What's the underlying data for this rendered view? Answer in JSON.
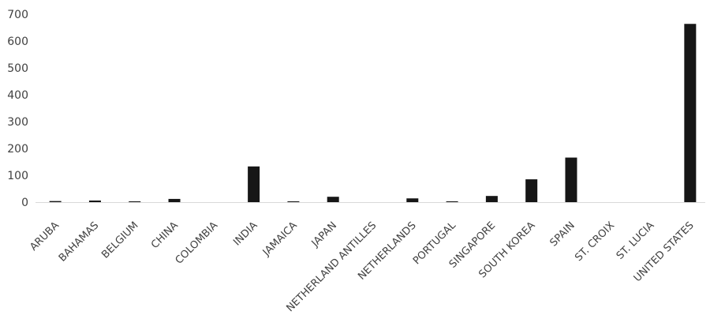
{
  "chart_data": {
    "type": "bar",
    "title": "",
    "xlabel": "",
    "ylabel": "",
    "ylim": [
      0,
      700
    ],
    "yticks": [
      0,
      100,
      200,
      300,
      400,
      500,
      600,
      700
    ],
    "grid": false,
    "legend": "none",
    "bar_color": "#161616",
    "categories": [
      "ARUBA",
      "BAHAMAS",
      "BELGIUM",
      "CHINA",
      "COLOMBIA",
      "INDIA",
      "JAMAICA",
      "JAPAN",
      "NETHERLAND ANTILLES",
      "NETHERLANDS",
      "PORTUGAL",
      "SINGAPORE",
      "SOUTH KOREA",
      "SPAIN",
      "ST. CROIX",
      "ST. LUCIA",
      "UNITED STATES"
    ],
    "values": [
      4,
      6,
      3,
      12,
      0,
      133,
      3,
      20,
      0,
      14,
      3,
      23,
      85,
      166,
      0,
      0,
      664
    ]
  }
}
